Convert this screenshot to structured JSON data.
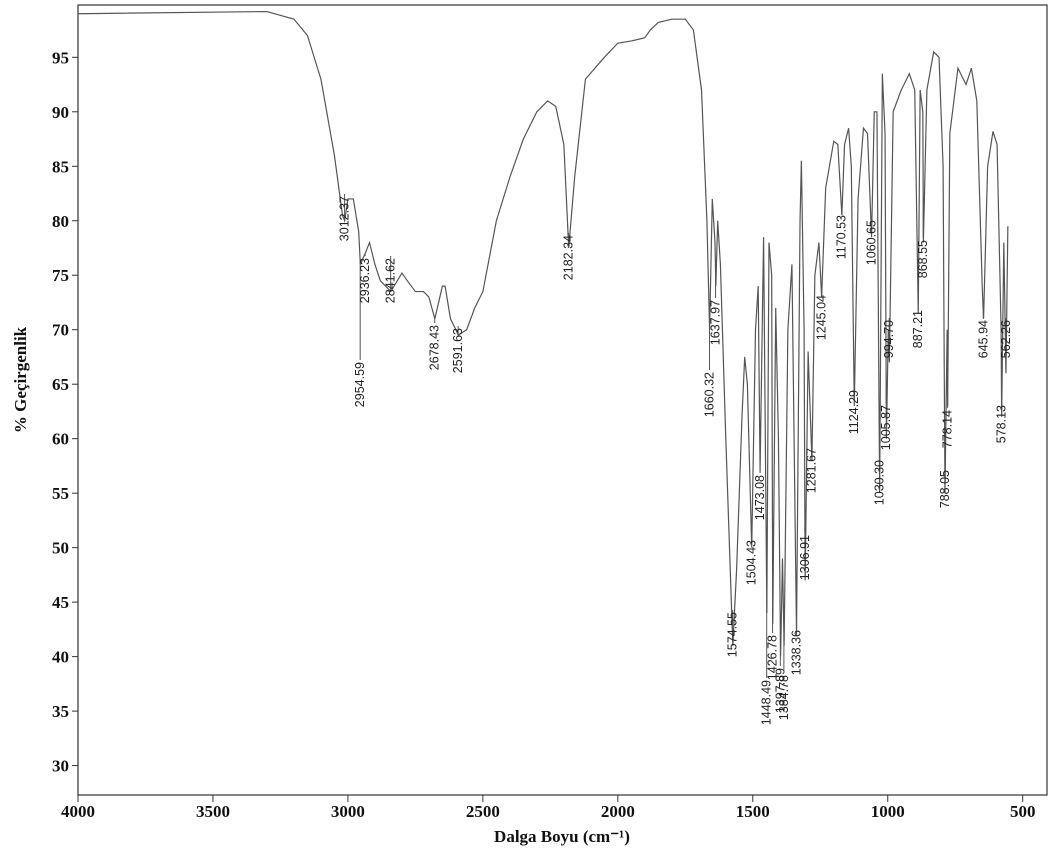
{
  "chart_data": {
    "type": "line",
    "xlabel": "Dalga Boyu (cm⁻¹)",
    "ylabel": "% Geçirgenlik",
    "color": "#555555",
    "xlim": [
      4000,
      410
    ],
    "ylim": [
      27.3,
      99.8
    ],
    "xticks": [
      4000,
      3500,
      3000,
      2500,
      2000,
      1500,
      1000,
      500
    ],
    "yticks": [
      30,
      35,
      40,
      45,
      50,
      55,
      60,
      65,
      70,
      75,
      80,
      85,
      90,
      95
    ],
    "x": [
      4000,
      3300,
      3200,
      3150,
      3100,
      3050,
      3020,
      3012,
      3000,
      2980,
      2960,
      2954,
      2936,
      2920,
      2900,
      2880,
      2841,
      2800,
      2780,
      2750,
      2720,
      2700,
      2678,
      2650,
      2640,
      2620,
      2600,
      2591,
      2560,
      2530,
      2500,
      2450,
      2400,
      2350,
      2300,
      2260,
      2230,
      2200,
      2182,
      2160,
      2120,
      2050,
      2000,
      1950,
      1900,
      1880,
      1850,
      1800,
      1750,
      1720,
      1690,
      1670,
      1660,
      1650,
      1640,
      1637,
      1630,
      1620,
      1600,
      1574,
      1560,
      1540,
      1530,
      1520,
      1504,
      1490,
      1480,
      1473,
      1460,
      1448,
      1440,
      1430,
      1426,
      1415,
      1405,
      1397,
      1390,
      1384,
      1370,
      1355,
      1338,
      1325,
      1320,
      1310,
      1306,
      1295,
      1281,
      1270,
      1255,
      1245,
      1230,
      1200,
      1185,
      1170,
      1160,
      1145,
      1135,
      1124,
      1110,
      1090,
      1075,
      1060,
      1050,
      1040,
      1030,
      1020,
      1010,
      1005,
      998,
      994,
      980,
      950,
      920,
      900,
      887,
      880,
      870,
      868,
      855,
      830,
      810,
      795,
      788,
      780,
      778,
      770,
      740,
      720,
      710,
      690,
      670,
      650,
      645,
      630,
      610,
      595,
      580,
      578,
      570,
      562,
      555
    ],
    "values": [
      99.0,
      99.2,
      98.5,
      97,
      93,
      86,
      80.5,
      80,
      82,
      82,
      79,
      76,
      77,
      78,
      76,
      74.5,
      73.5,
      75.2,
      74.5,
      73.5,
      73.5,
      73,
      71,
      74,
      74,
      71,
      70,
      69.5,
      70,
      72,
      73.5,
      80,
      84,
      87.5,
      90,
      91,
      90.5,
      87,
      77.5,
      84,
      93,
      95,
      96.3,
      96.5,
      96.8,
      97.5,
      98.2,
      98.5,
      98.5,
      97.5,
      92,
      80,
      70,
      82,
      78,
      74,
      80,
      76,
      60,
      41,
      48,
      62,
      67.5,
      65,
      50,
      70,
      74,
      57,
      78.5,
      44,
      78,
      75,
      43,
      72,
      60,
      40,
      49,
      41,
      70,
      76,
      42,
      80,
      85.5,
      70,
      47,
      68,
      58,
      75,
      78,
      73,
      83,
      87.3,
      87,
      80.5,
      87,
      88.5,
      85,
      63,
      82,
      88.5,
      88,
      78.5,
      90,
      90,
      55,
      93.5,
      88,
      60,
      70,
      67,
      90,
      92,
      93.5,
      92,
      71.5,
      92,
      90,
      78,
      92,
      95.5,
      95,
      85,
      55,
      70,
      63,
      88,
      94,
      93,
      92.5,
      94,
      91,
      74,
      71,
      85,
      88.2,
      87,
      70,
      62,
      78,
      66,
      79.5
    ],
    "peaks": [
      3012.37,
      2954.59,
      2936.23,
      2841.62,
      2678.43,
      2591.63,
      2182.34,
      1660.32,
      1637.97,
      1574.55,
      1504.43,
      1473.08,
      1448.49,
      1426.78,
      1397.89,
      1384.78,
      1338.36,
      1306.91,
      1281.67,
      1245.04,
      1170.53,
      1124.29,
      1060.65,
      {
        "value": 1030.3,
        "label": "1030.30"
      },
      1005.87,
      {
        "value": 994.7,
        "label": "994.70"
      },
      887.21,
      868.55,
      788.05,
      778.14,
      645.94,
      578.13,
      562.26
    ]
  }
}
